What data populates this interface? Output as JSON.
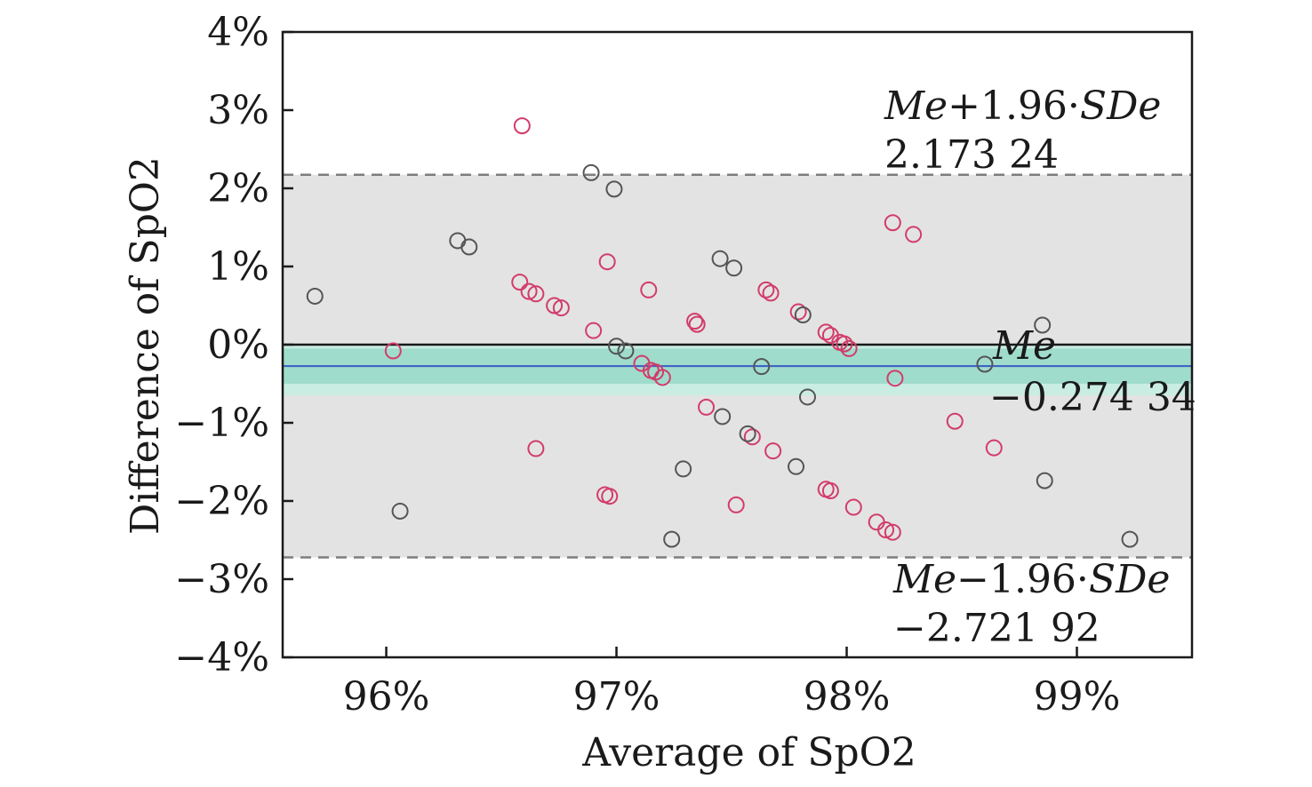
{
  "chart_data": {
    "type": "scatter",
    "title": "",
    "xlabel": "Average of SpO2",
    "ylabel": "Difference of SpO2",
    "xlim": [
      95.55,
      99.5
    ],
    "ylim": [
      -4,
      4
    ],
    "x_ticks": [
      96,
      97,
      98,
      99
    ],
    "x_tick_labels": [
      "96%",
      "97%",
      "98%",
      "99%"
    ],
    "y_ticks": [
      4,
      3,
      2,
      1,
      0,
      -1,
      -2,
      -3,
      -4
    ],
    "y_tick_labels": [
      "4%",
      "3%",
      "2%",
      "1%",
      "0%",
      "−1%",
      "−2%",
      "−3%",
      "−4%"
    ],
    "mean": {
      "value": -0.27434,
      "label": "Me",
      "value_label": "−0.274 34",
      "ci": [
        -0.5,
        -0.05
      ],
      "color": "#3a5bc7",
      "band_color": "#9fdccb"
    },
    "upper_loa": {
      "value": 2.17324,
      "label_italic_1": "Me",
      "label_mid": "+1.96·",
      "label_italic_2": "SDe",
      "value_label": "2.173 24"
    },
    "lower_loa": {
      "value": -2.72192,
      "label_italic_1": "Me",
      "label_mid": "−1.96·",
      "label_italic_2": "SDe",
      "value_label": "−2.721 92"
    },
    "zero_line": 0,
    "band_color": "#e3e3e3",
    "outer_band_color": "#c9ede3",
    "grid": false,
    "series": [
      {
        "color": "#d23c6a",
        "points": [
          [
            96.03,
            -0.08
          ],
          [
            96.58,
            0.8
          ],
          [
            96.62,
            0.68
          ],
          [
            96.65,
            0.65
          ],
          [
            96.73,
            0.5
          ],
          [
            96.76,
            0.47
          ],
          [
            96.59,
            2.8
          ],
          [
            96.65,
            -1.33
          ],
          [
            96.9,
            0.18
          ],
          [
            96.96,
            1.06
          ],
          [
            96.95,
            -1.92
          ],
          [
            96.97,
            -1.94
          ],
          [
            97.14,
            0.7
          ],
          [
            97.11,
            -0.24
          ],
          [
            97.15,
            -0.33
          ],
          [
            97.17,
            -0.35
          ],
          [
            97.2,
            -0.42
          ],
          [
            97.34,
            0.3
          ],
          [
            97.35,
            0.26
          ],
          [
            97.39,
            -0.8
          ],
          [
            97.52,
            -2.05
          ],
          [
            97.59,
            -1.18
          ],
          [
            97.65,
            0.7
          ],
          [
            97.67,
            0.66
          ],
          [
            97.68,
            -1.36
          ],
          [
            97.79,
            0.42
          ],
          [
            97.91,
            0.16
          ],
          [
            97.93,
            0.12
          ],
          [
            97.91,
            -1.85
          ],
          [
            97.93,
            -1.87
          ],
          [
            97.97,
            0.03
          ],
          [
            97.99,
            0.01
          ],
          [
            98.01,
            -0.05
          ],
          [
            98.03,
            -2.08
          ],
          [
            98.2,
            1.56
          ],
          [
            98.29,
            1.41
          ],
          [
            98.21,
            -0.43
          ],
          [
            98.47,
            -0.98
          ],
          [
            98.64,
            -1.32
          ],
          [
            98.17,
            -2.37
          ],
          [
            98.2,
            -2.4
          ],
          [
            98.13,
            -2.27
          ]
        ]
      },
      {
        "color": "#555555",
        "points": [
          [
            95.69,
            0.62
          ],
          [
            96.06,
            -2.13
          ],
          [
            96.31,
            1.33
          ],
          [
            96.36,
            1.25
          ],
          [
            96.89,
            2.2
          ],
          [
            96.99,
            1.99
          ],
          [
            97.0,
            -0.02
          ],
          [
            97.04,
            -0.08
          ],
          [
            97.24,
            -2.49
          ],
          [
            97.29,
            -1.59
          ],
          [
            97.45,
            1.1
          ],
          [
            97.51,
            0.98
          ],
          [
            97.46,
            -0.92
          ],
          [
            97.57,
            -1.14
          ],
          [
            97.63,
            -0.28
          ],
          [
            97.78,
            -1.56
          ],
          [
            97.81,
            0.38
          ],
          [
            97.83,
            -0.67
          ],
          [
            98.6,
            -0.25
          ],
          [
            98.85,
            0.25
          ],
          [
            98.86,
            -1.74
          ],
          [
            99.23,
            -2.49
          ]
        ]
      }
    ]
  }
}
